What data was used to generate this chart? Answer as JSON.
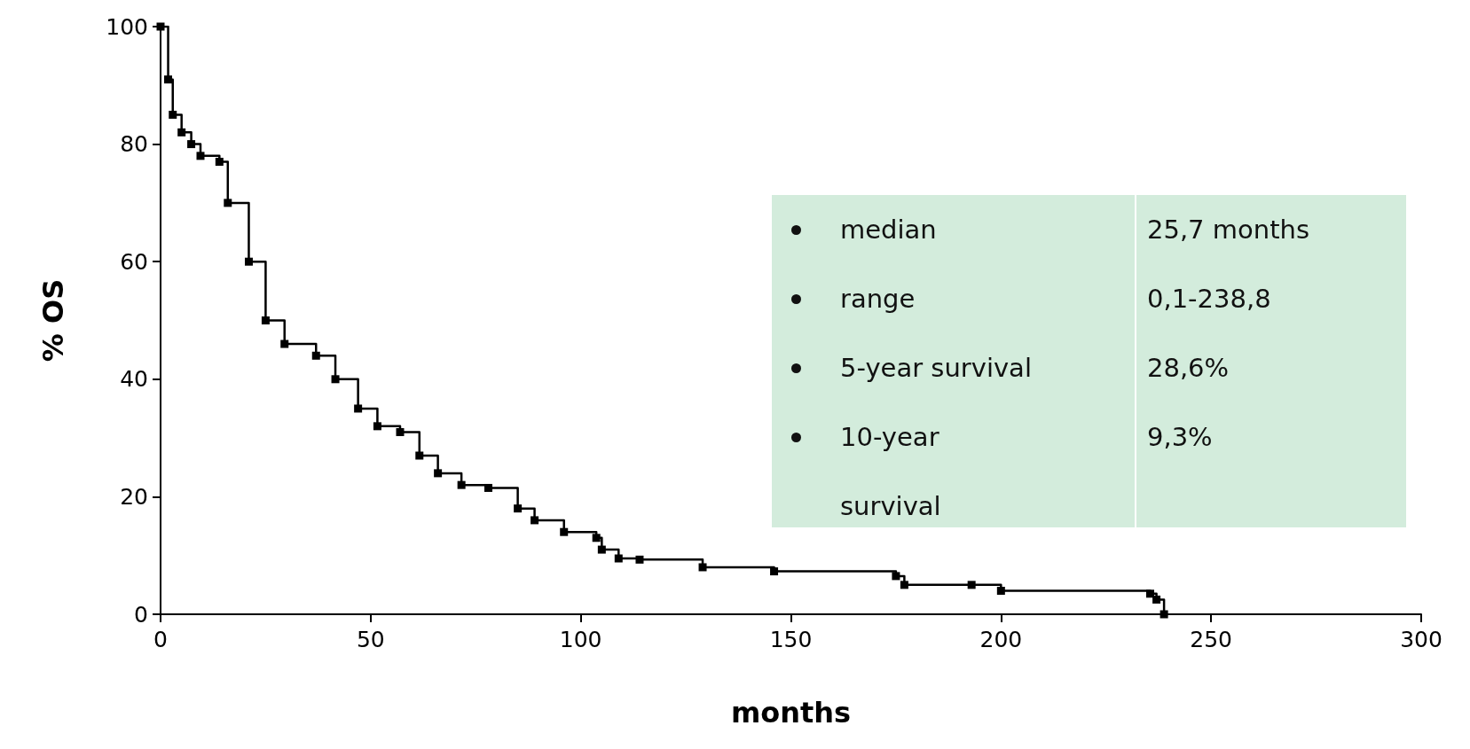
{
  "chart_data": {
    "type": "step",
    "xlabel": "months",
    "ylabel": "% OS",
    "x": [
      0,
      1.8,
      2.9,
      5,
      7.3,
      9.5,
      14,
      16,
      21,
      25,
      29.5,
      37,
      41.6,
      47,
      51.6,
      57,
      61.6,
      66,
      71.6,
      78,
      85,
      89,
      96,
      103.7,
      105,
      109,
      114,
      129,
      146,
      175,
      177,
      193,
      200,
      235.5,
      237,
      238.8
    ],
    "series": [
      {
        "color": "#000000",
        "values": [
          100,
          91,
          85,
          82,
          80,
          78,
          77,
          70,
          60,
          50,
          46,
          44,
          40,
          35,
          32,
          31,
          27,
          24,
          22,
          21.5,
          18,
          16,
          14,
          13,
          11,
          9.5,
          9.3,
          8,
          7.3,
          6.5,
          5,
          5,
          4,
          3.5,
          2.5,
          0
        ]
      }
    ],
    "xlim": [
      0,
      300
    ],
    "xticks": [
      0,
      50,
      100,
      150,
      200,
      250,
      300
    ],
    "ylim": [
      0,
      100
    ],
    "yticks": [
      0,
      20,
      40,
      60,
      80,
      100
    ],
    "grid": false,
    "marker": "square",
    "line_style": "solid",
    "annotations": [
      "median",
      "25,7 months",
      "range",
      "0,1-238,8",
      "5-year survival",
      "28,6%",
      "10-year survival",
      "9,3%"
    ]
  }
}
